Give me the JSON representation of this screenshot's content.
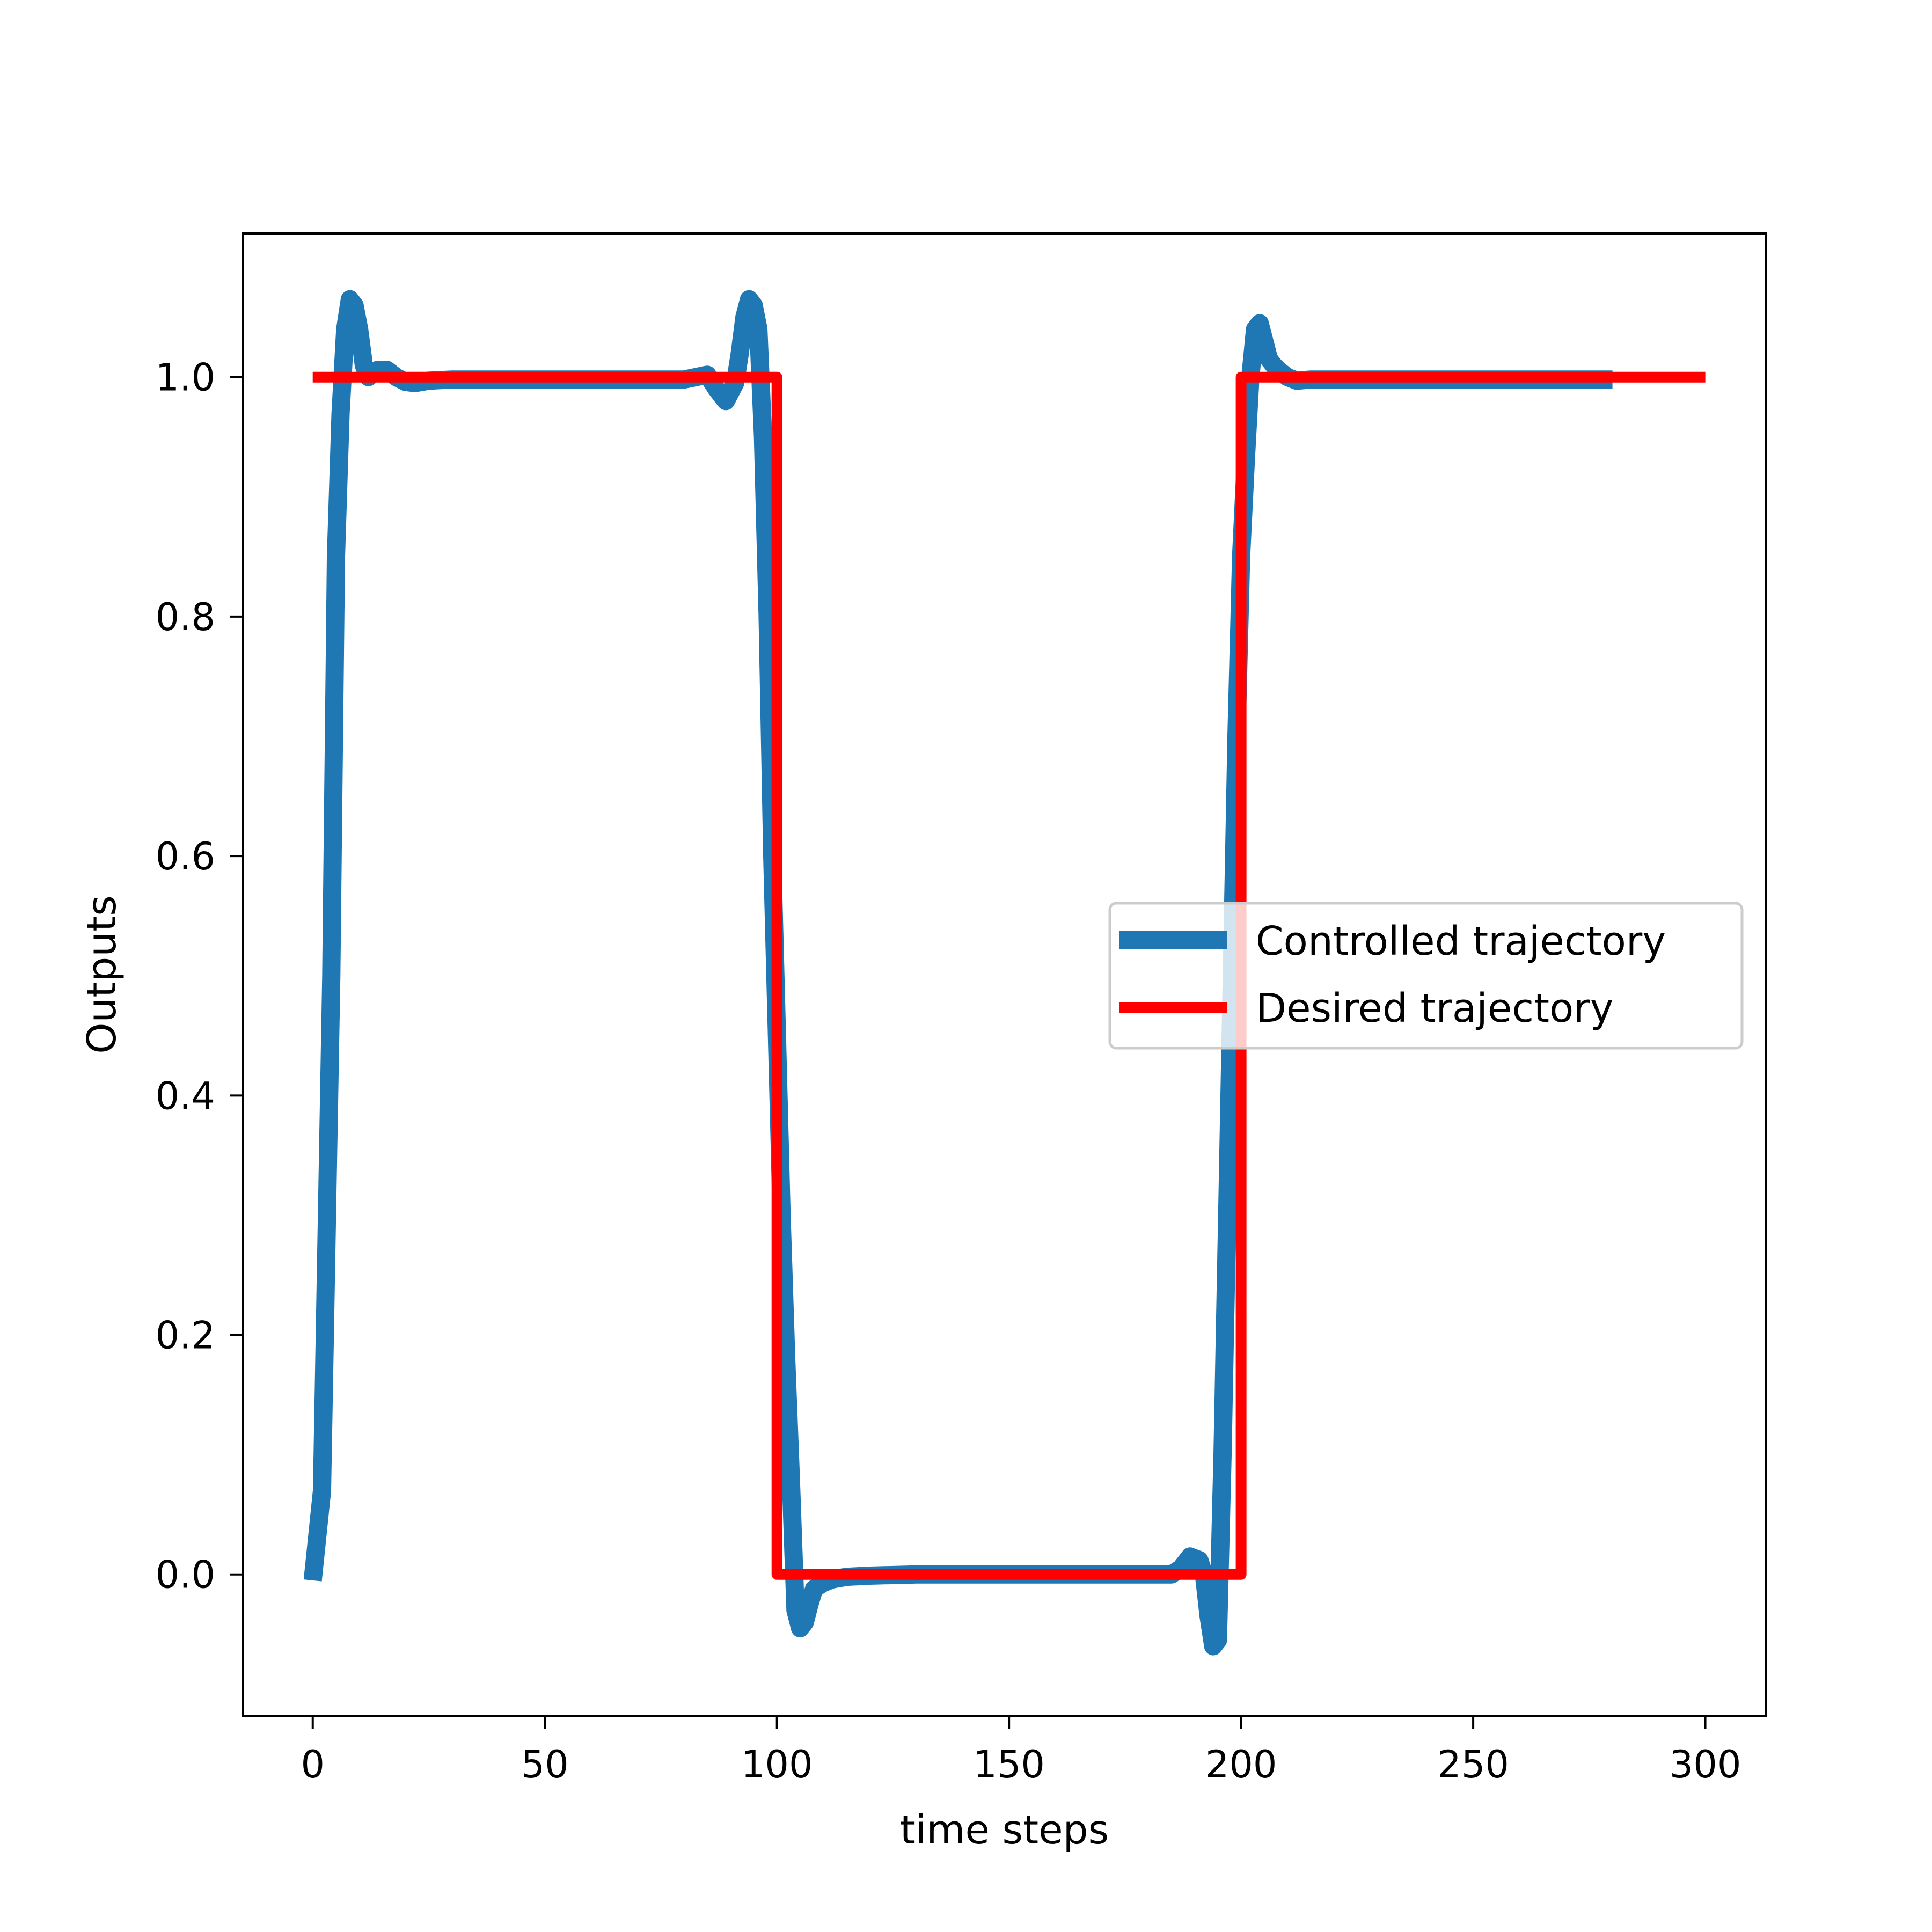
{
  "chart_data": {
    "type": "line",
    "title": "",
    "xlabel": "time steps",
    "ylabel": "Outputs",
    "xlim": [
      -15,
      313
    ],
    "ylim": [
      -0.118,
      1.12
    ],
    "xticks": [
      0,
      50,
      100,
      150,
      200,
      250,
      300
    ],
    "yticks": [
      0.0,
      0.2,
      0.4,
      0.6,
      0.8,
      1.0
    ],
    "xtick_labels": [
      "0",
      "50",
      "100",
      "150",
      "200",
      "250",
      "300"
    ],
    "ytick_labels": [
      "0.0",
      "0.2",
      "0.4",
      "0.6",
      "0.8",
      "1.0"
    ],
    "grid": false,
    "legend_position": "center-right",
    "series": [
      {
        "name": "Controlled trajectory",
        "color": "#1f77b4",
        "x": [
          0,
          2,
          4,
          5,
          6,
          7,
          8,
          9,
          10,
          11,
          12,
          14,
          16,
          18,
          20,
          22,
          25,
          30,
          40,
          50,
          60,
          70,
          80,
          85,
          87,
          89,
          91,
          92,
          93,
          94,
          95,
          96,
          97,
          98,
          99,
          100,
          101,
          102,
          103,
          104,
          105,
          106,
          107,
          108,
          110,
          112,
          115,
          120,
          130,
          140,
          150,
          160,
          170,
          180,
          185,
          187,
          189,
          191,
          192,
          193,
          194,
          195,
          196,
          197,
          198,
          199,
          200,
          201,
          202,
          203,
          204,
          205,
          206,
          207,
          208,
          210,
          212,
          215,
          220,
          230,
          240,
          250,
          260,
          270,
          280
        ],
        "y": [
          -0.005,
          0.07,
          0.5,
          0.85,
          0.97,
          1.04,
          1.065,
          1.06,
          1.04,
          1.01,
          1.0,
          1.006,
          1.006,
          1.0,
          0.996,
          0.995,
          0.997,
          0.998,
          0.998,
          0.998,
          0.998,
          0.998,
          0.998,
          1.002,
          0.99,
          0.98,
          0.995,
          1.02,
          1.05,
          1.065,
          1.06,
          1.04,
          0.95,
          0.8,
          0.6,
          0.45,
          0.3,
          0.18,
          0.08,
          -0.03,
          -0.045,
          -0.04,
          -0.025,
          -0.012,
          -0.007,
          -0.004,
          -0.002,
          -0.001,
          0.0,
          0.0,
          0.0,
          0.0,
          0.0,
          0.0,
          0.0,
          0.005,
          0.015,
          0.012,
          0.0,
          -0.035,
          -0.06,
          -0.055,
          0.1,
          0.3,
          0.5,
          0.7,
          0.85,
          0.93,
          1.0,
          1.04,
          1.045,
          1.03,
          1.015,
          1.01,
          1.006,
          1.0,
          0.997,
          0.998,
          0.998,
          0.998,
          0.998,
          0.998,
          0.998,
          0.998,
          0.998
        ]
      },
      {
        "name": "Desired trajectory",
        "color": "#ff0000",
        "x": [
          0,
          100,
          100,
          200,
          200,
          300
        ],
        "y": [
          1.0,
          1.0,
          0.0,
          0.0,
          1.0,
          1.0
        ]
      }
    ]
  }
}
